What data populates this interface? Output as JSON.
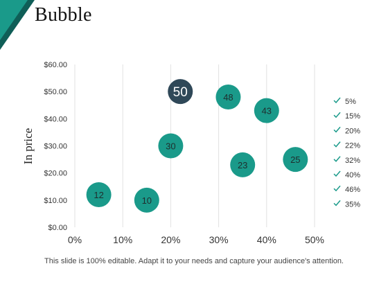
{
  "slide": {
    "title": "Bubble",
    "footer": "This slide is 100% editable. Adapt it to your needs and capture your audience's attention."
  },
  "colors": {
    "accent": "#1a9a8a",
    "accent_dark": "#0f5e57",
    "highlight_bubble": "#2f4858",
    "bubble_text": "#1f2d2d",
    "check": "#1a9a8a"
  },
  "chart_data": {
    "type": "scatter",
    "title": "",
    "xlabel": "",
    "ylabel": "In price",
    "xlim": [
      0,
      50
    ],
    "ylim": [
      0,
      60
    ],
    "x_ticks": [
      "0%",
      "10%",
      "20%",
      "30%",
      "40%",
      "50%"
    ],
    "y_ticks": [
      "$0.00",
      "$10.00",
      "$20.00",
      "$30.00",
      "$40.00",
      "$50.00",
      "$60.00"
    ],
    "grid": "vertical",
    "legend_position": "right",
    "legend": [
      "5%",
      "15%",
      "20%",
      "22%",
      "32%",
      "40%",
      "46%",
      "35%"
    ],
    "points": [
      {
        "x": 5,
        "y": 12,
        "label": "12"
      },
      {
        "x": 15,
        "y": 10,
        "label": "10"
      },
      {
        "x": 20,
        "y": 30,
        "label": "30"
      },
      {
        "x": 22,
        "y": 50,
        "label": "50",
        "highlight": true
      },
      {
        "x": 32,
        "y": 48,
        "label": "48"
      },
      {
        "x": 40,
        "y": 43,
        "label": "43"
      },
      {
        "x": 46,
        "y": 25,
        "label": "25"
      },
      {
        "x": 35,
        "y": 23,
        "label": "23"
      }
    ]
  }
}
